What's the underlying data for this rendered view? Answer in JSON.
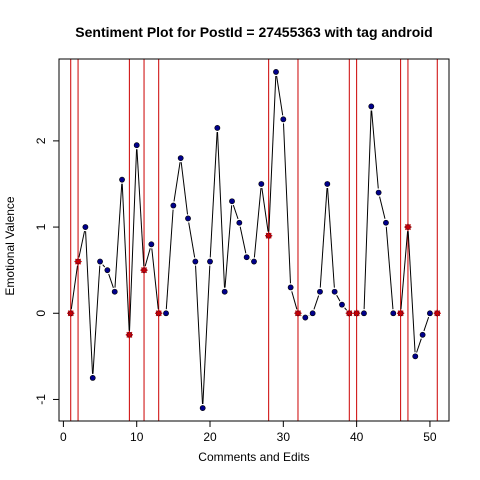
{
  "chart_data": {
    "type": "line",
    "title": "Sentiment Plot for PostId =  27455363  with tag  android",
    "xlabel": "Comments and Edits",
    "ylabel": "Emotional Valence",
    "xlim": [
      -0.6,
      52.6
    ],
    "ylim": [
      -1.25,
      2.95
    ],
    "x_ticks": [
      0,
      10,
      20,
      30,
      40,
      50
    ],
    "y_ticks": [
      -1,
      0,
      1,
      2
    ],
    "grid": false,
    "series": [
      {
        "marker": "blue-dot",
        "points": [
          [
            1,
            0
          ],
          [
            2,
            0.6
          ],
          [
            3,
            1.0
          ],
          [
            4,
            -0.75
          ],
          [
            5,
            0.6
          ],
          [
            6,
            0.5
          ],
          [
            7,
            0.25
          ],
          [
            8,
            1.55
          ],
          [
            9,
            -0.25
          ],
          [
            10,
            1.95
          ],
          [
            11,
            0.5
          ],
          [
            12,
            0.8
          ],
          [
            13,
            0
          ],
          [
            14,
            0
          ],
          [
            15,
            1.25
          ],
          [
            16,
            1.8
          ],
          [
            17,
            1.1
          ],
          [
            18,
            0.6
          ],
          [
            19,
            -1.1
          ],
          [
            20,
            0.6
          ],
          [
            21,
            2.15
          ],
          [
            22,
            0.25
          ],
          [
            23,
            1.3
          ],
          [
            24,
            1.05
          ],
          [
            25,
            0.65
          ],
          [
            26,
            0.6
          ],
          [
            27,
            1.5
          ],
          [
            28,
            0.9
          ],
          [
            29,
            2.8
          ],
          [
            30,
            2.25
          ],
          [
            31,
            0.3
          ],
          [
            32,
            0
          ],
          [
            33,
            -0.05
          ],
          [
            34,
            0
          ],
          [
            35,
            0.25
          ],
          [
            36,
            1.5
          ],
          [
            37,
            0.25
          ],
          [
            38,
            0.1
          ],
          [
            39,
            0
          ],
          [
            40,
            0
          ],
          [
            41,
            0
          ],
          [
            42,
            2.4
          ],
          [
            43,
            1.4
          ],
          [
            44,
            1.05
          ],
          [
            45,
            0
          ],
          [
            46,
            0
          ],
          [
            47,
            1.0
          ],
          [
            48,
            -0.5
          ],
          [
            49,
            -0.25
          ],
          [
            50,
            0
          ],
          [
            51,
            0
          ]
        ]
      }
    ],
    "edit_markers": {
      "marker": "red-asterisk",
      "points": [
        [
          1,
          0
        ],
        [
          2,
          0.6
        ],
        [
          9,
          -0.25
        ],
        [
          11,
          0.5
        ],
        [
          13,
          0
        ],
        [
          28,
          0.9
        ],
        [
          32,
          0
        ],
        [
          39,
          0
        ],
        [
          40,
          0
        ],
        [
          46,
          0
        ],
        [
          47,
          1.0
        ],
        [
          51,
          0
        ]
      ]
    },
    "vertical_lines_x": [
      1,
      2,
      9,
      11,
      13,
      28,
      32,
      39,
      40,
      46,
      47,
      51
    ],
    "colors": {
      "line": "#000000",
      "point": "#00008b",
      "edit_marker": "#cc0000",
      "vline": "#cc0000"
    }
  }
}
